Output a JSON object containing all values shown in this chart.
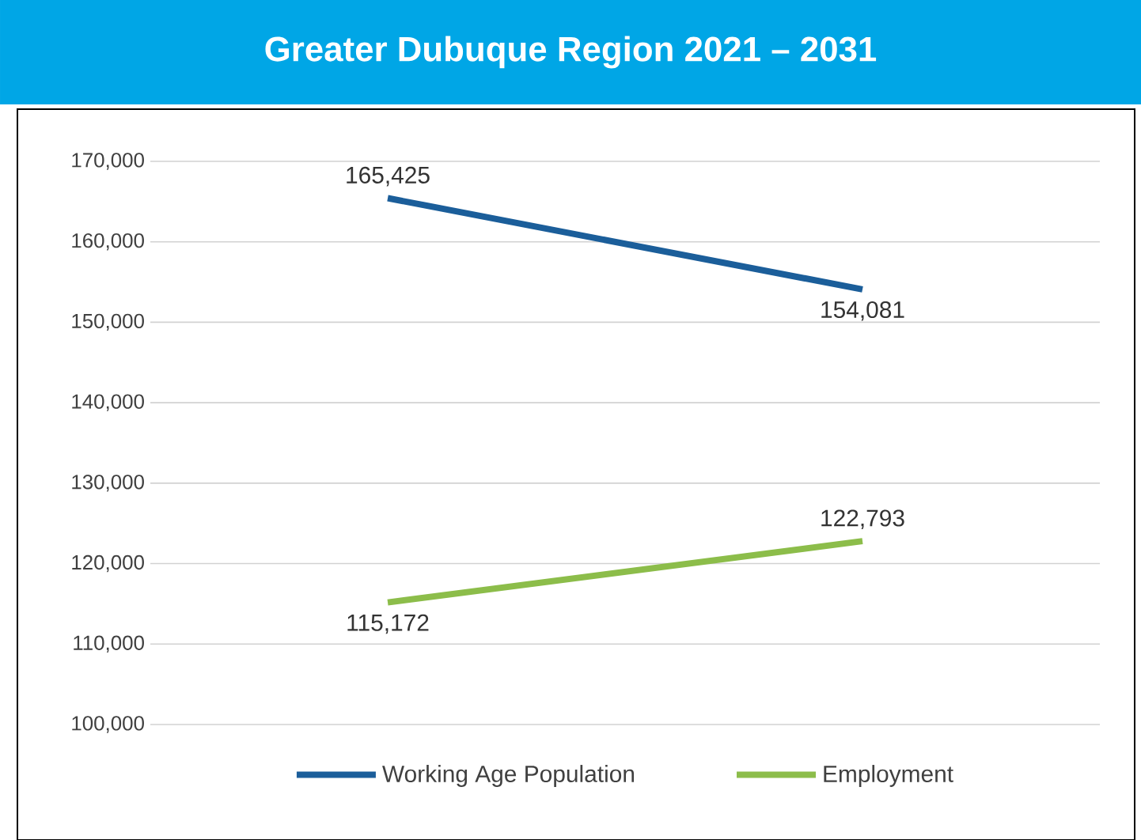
{
  "chart_data": {
    "type": "line",
    "title": "Greater Dubuque Region 2021 – 2031",
    "categories": [
      null,
      null
    ],
    "series": [
      {
        "name": "Working Age Population",
        "color": "#1b5e9a",
        "values": [
          165425,
          154081
        ],
        "value_labels": [
          "165,425",
          "154,081"
        ]
      },
      {
        "name": "Employment",
        "color": "#8cbd4a",
        "values": [
          115172,
          122793
        ],
        "value_labels": [
          "115,172",
          "122,793"
        ]
      }
    ],
    "ylim": [
      100000,
      170000
    ],
    "yticks": [
      {
        "value": 100000,
        "label": "100,000"
      },
      {
        "value": 110000,
        "label": "110,000"
      },
      {
        "value": 120000,
        "label": "120,000"
      },
      {
        "value": 130000,
        "label": "130,000"
      },
      {
        "value": 140000,
        "label": "140,000"
      },
      {
        "value": 150000,
        "label": "150,000"
      },
      {
        "value": 160000,
        "label": "160,000"
      },
      {
        "value": 170000,
        "label": "170,000"
      }
    ],
    "grid": "y",
    "legend": "bottom",
    "marker": "none",
    "line_style": "solid"
  }
}
